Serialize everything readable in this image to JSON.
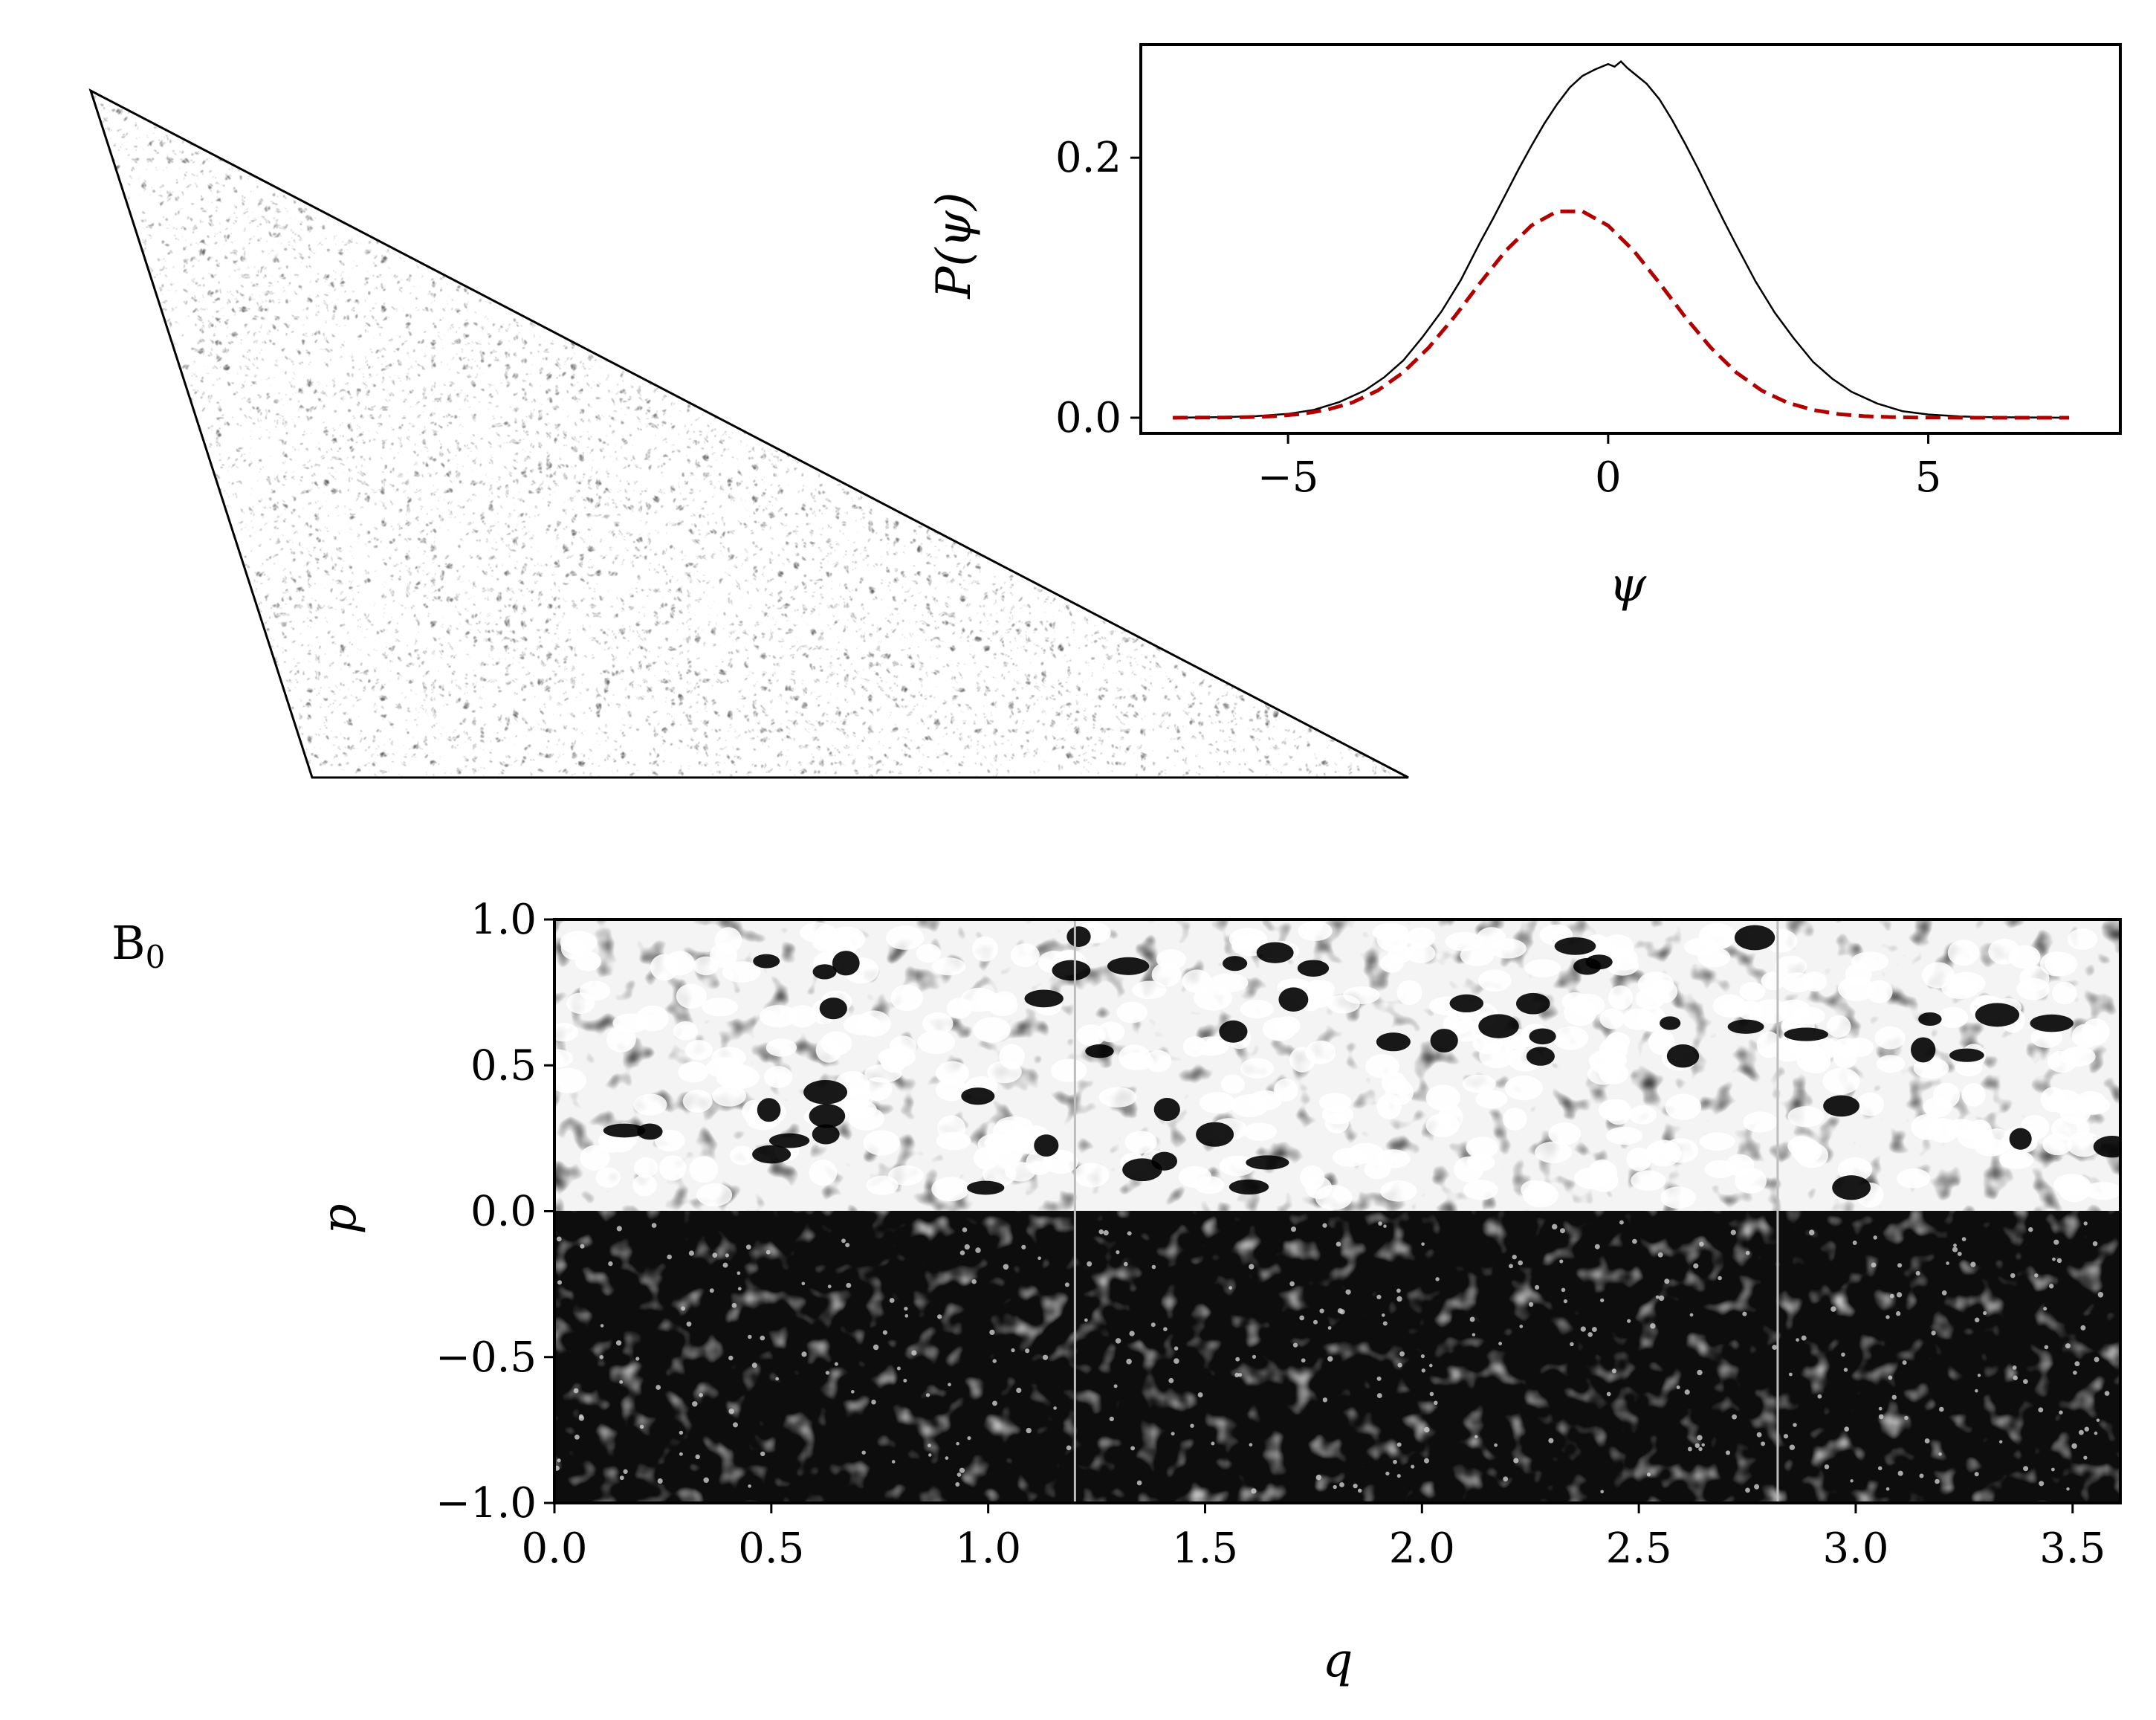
{
  "panel_label": "B",
  "panel_label_sub": "0",
  "chart_data": [
    {
      "type": "line",
      "xlabel": "ψ",
      "ylabel": "P(ψ)",
      "xlim": [
        -7.3,
        8.0
      ],
      "ylim": [
        -0.012,
        0.287
      ],
      "xticks": [
        -5,
        0,
        5
      ],
      "xtick_labels": [
        "−5",
        "0",
        "5"
      ],
      "yticks": [
        0.0,
        0.2
      ],
      "ytick_labels": [
        "0.0",
        "0.2"
      ],
      "grid": false,
      "series": [
        {
          "style": "solid",
          "color": "#000000",
          "x": [
            -6.8,
            -6.0,
            -5.5,
            -5.0,
            -4.6,
            -4.2,
            -3.8,
            -3.5,
            -3.2,
            -2.9,
            -2.6,
            -2.3,
            -2.0,
            -1.8,
            -1.6,
            -1.4,
            -1.2,
            -1.0,
            -0.8,
            -0.6,
            -0.4,
            -0.2,
            0.0,
            0.1,
            0.2,
            0.3,
            0.4,
            0.6,
            0.8,
            1.0,
            1.2,
            1.4,
            1.6,
            1.8,
            2.0,
            2.3,
            2.6,
            2.9,
            3.2,
            3.5,
            3.8,
            4.2,
            4.6,
            5.0,
            5.5,
            6.0,
            7.2
          ],
          "y": [
            0.0,
            0.0005,
            0.0012,
            0.003,
            0.006,
            0.012,
            0.021,
            0.031,
            0.044,
            0.062,
            0.082,
            0.106,
            0.135,
            0.153,
            0.172,
            0.191,
            0.209,
            0.226,
            0.241,
            0.254,
            0.263,
            0.268,
            0.272,
            0.27,
            0.274,
            0.269,
            0.265,
            0.257,
            0.245,
            0.229,
            0.211,
            0.192,
            0.172,
            0.152,
            0.133,
            0.105,
            0.081,
            0.061,
            0.043,
            0.03,
            0.02,
            0.011,
            0.005,
            0.0025,
            0.001,
            0.0004,
            0.0
          ]
        },
        {
          "style": "dashed",
          "color": "#b20000",
          "x": [
            -6.8,
            -6.4,
            -6.0,
            -5.6,
            -5.2,
            -4.8,
            -4.4,
            -4.0,
            -3.6,
            -3.2,
            -2.8,
            -2.4,
            -2.0,
            -1.6,
            -1.2,
            -0.8,
            -0.4,
            0.0,
            0.4,
            0.8,
            1.2,
            1.6,
            2.0,
            2.4,
            2.8,
            3.2,
            3.6,
            4.0,
            4.4,
            4.8,
            5.2,
            5.6,
            6.0,
            6.4,
            6.8,
            7.2
          ],
          "y": [
            2e-05,
            0.0001,
            0.0002,
            0.0005,
            0.0012,
            0.0028,
            0.006,
            0.0116,
            0.0209,
            0.0349,
            0.0541,
            0.0777,
            0.1037,
            0.1284,
            0.1478,
            0.1587,
            0.1587,
            0.1478,
            0.1284,
            0.1037,
            0.0777,
            0.0541,
            0.0349,
            0.0209,
            0.0116,
            0.006,
            0.0028,
            0.0012,
            0.0005,
            0.0002,
            0.0001,
            2e-05,
            0.0,
            0.0,
            0.0,
            0.0
          ]
        }
      ]
    },
    {
      "type": "heatmap",
      "xlabel": "q",
      "ylabel": "p",
      "xlim": [
        0.0,
        3.61
      ],
      "ylim": [
        -1.0,
        1.0
      ],
      "xticks": [
        0.0,
        0.5,
        1.0,
        1.5,
        2.0,
        2.5,
        3.0,
        3.5
      ],
      "xtick_labels": [
        "0.0",
        "0.5",
        "1.0",
        "1.5",
        "2.0",
        "2.5",
        "3.0",
        "3.5"
      ],
      "yticks": [
        -1.0,
        -0.5,
        0.0,
        0.5,
        1.0
      ],
      "ytick_labels": [
        "−1.0",
        "−0.5",
        "0.0",
        "0.5",
        "1.0"
      ],
      "vlines": [
        1.2,
        2.82
      ],
      "colormap": "gray",
      "grid": false
    }
  ]
}
